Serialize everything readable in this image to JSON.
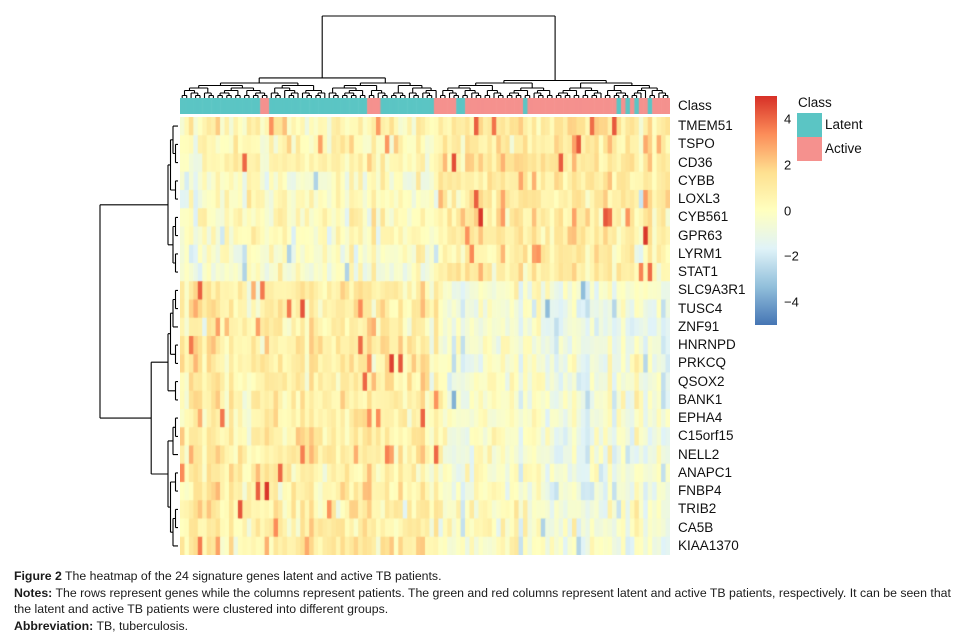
{
  "chart_data": {
    "type": "heatmap",
    "title": "",
    "genes": [
      "TMEM51",
      "TSPO",
      "CD36",
      "CYBB",
      "LOXL3",
      "CYB561",
      "GPR63",
      "LYRM1",
      "STAT1",
      "SLC9A3R1",
      "TUSC4",
      "ZNF91",
      "HNRNPD",
      "PRKCQ",
      "QSOX2",
      "BANK1",
      "EPHA4",
      "C15orf15",
      "NELL2",
      "ANAPC1",
      "FNBP4",
      "TRIB2",
      "CA5B",
      "KIAA1370"
    ],
    "n_columns": 110,
    "row_cluster_split": 9,
    "column_split_fraction": 0.53,
    "seed": 11,
    "noise_sd": 0.55,
    "column_effect_sd": 0.42,
    "spike_probability": 0.05,
    "row_means": {
      "left_cluster": [
        0.5,
        0.3,
        0.3,
        -0.2,
        0.1,
        0.2,
        -0.1,
        -0.3,
        -0.3,
        0.7,
        0.8,
        0.7,
        0.8,
        0.9,
        0.7,
        0.7,
        0.6,
        0.8,
        0.9,
        0.7,
        0.7,
        0.8,
        0.7,
        0.8
      ],
      "right_cluster": [
        1.0,
        1.0,
        1.2,
        1.0,
        0.9,
        1.1,
        1.0,
        0.9,
        0.8,
        -0.6,
        -0.9,
        -0.9,
        -0.7,
        -0.8,
        -0.6,
        -0.8,
        -0.6,
        -0.7,
        -0.8,
        -0.6,
        -0.7,
        -0.5,
        -0.4,
        -0.5
      ]
    },
    "class_annotation": {
      "label": "Class",
      "legend_title": "Class",
      "classes": [
        {
          "name": "Latent",
          "color": "#5BC5C4"
        },
        {
          "name": "Active",
          "color": "#F5918E"
        }
      ],
      "segments": [
        {
          "class": "Latent",
          "to": 0.16
        },
        {
          "class": "Active",
          "to": 0.18
        },
        {
          "class": "Latent",
          "to": 0.385
        },
        {
          "class": "Active",
          "to": 0.406
        },
        {
          "class": "Latent",
          "to": 0.52
        },
        {
          "class": "Active",
          "to": 0.563
        },
        {
          "class": "Latent",
          "to": 0.578
        },
        {
          "class": "Active",
          "to": 0.697
        },
        {
          "class": "Latent",
          "to": 0.711
        },
        {
          "class": "Active",
          "to": 0.824
        },
        {
          "class": "Latent",
          "to": 0.83
        },
        {
          "class": "Active",
          "to": 0.891
        },
        {
          "class": "Latent",
          "to": 0.9
        },
        {
          "class": "Active",
          "to": 0.91
        },
        {
          "class": "Latent",
          "to": 0.918
        },
        {
          "class": "Active",
          "to": 0.926
        },
        {
          "class": "Latent",
          "to": 0.934
        },
        {
          "class": "Active",
          "to": 0.953
        },
        {
          "class": "Latent",
          "to": 0.961
        },
        {
          "class": "Active",
          "to": 1.0
        }
      ]
    },
    "colorbar": {
      "domain": [
        -5,
        5
      ],
      "colors": [
        "#4575B4",
        "#91BFDB",
        "#E0F3F8",
        "#FFFFBF",
        "#FEE090",
        "#FC8D59",
        "#D73027"
      ],
      "ticks": [
        {
          "value": 4,
          "label": "4"
        },
        {
          "value": 2,
          "label": "2"
        },
        {
          "value": 0,
          "label": "0"
        },
        {
          "value": -2,
          "label": "−2"
        },
        {
          "value": -4,
          "label": "−4"
        }
      ]
    }
  },
  "caption": {
    "figure_label": "Figure 2",
    "figure_text": "The heatmap of the 24 signature genes latent and active TB patients.",
    "notes_label": "Notes:",
    "notes_text": "The rows represent genes while the columns represent patients. The green and red columns represent latent and active TB patients, respectively. It can be seen that the latent and active TB patients were clustered into different groups.",
    "abbrev_label": "Abbreviation:",
    "abbrev_text": "TB, tuberculosis."
  }
}
